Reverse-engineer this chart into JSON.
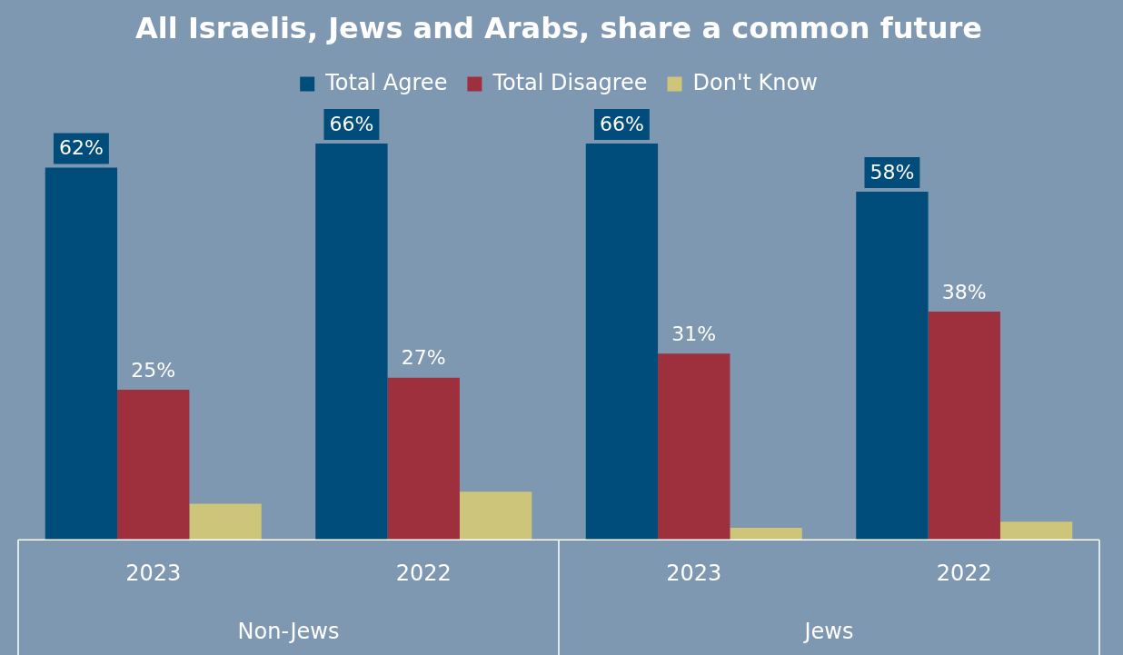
{
  "chart_data": {
    "type": "bar",
    "title": "All Israelis, Jews and Arabs, share a common future",
    "categories": [
      "2023",
      "2022",
      "2023",
      "2022"
    ],
    "series": [
      {
        "name": "Total Agree",
        "color": "#004c7a",
        "values": [
          62,
          66,
          66,
          58
        ],
        "value_labels": [
          "62%",
          "66%",
          "66%",
          "58%"
        ]
      },
      {
        "name": "Total Disagree",
        "color": "#9e2f3d",
        "values": [
          25,
          27,
          31,
          38
        ],
        "value_labels": [
          "25%",
          "27%",
          "31%",
          "38%"
        ]
      },
      {
        "name": "Don't Know",
        "color": "#cdc57a",
        "values": [
          6,
          8,
          2,
          3
        ],
        "value_labels": [
          null,
          null,
          null,
          null
        ]
      }
    ],
    "annotations": [
      "Non-Jews",
      "Jews"
    ],
    "legend": "top",
    "grid": false
  }
}
